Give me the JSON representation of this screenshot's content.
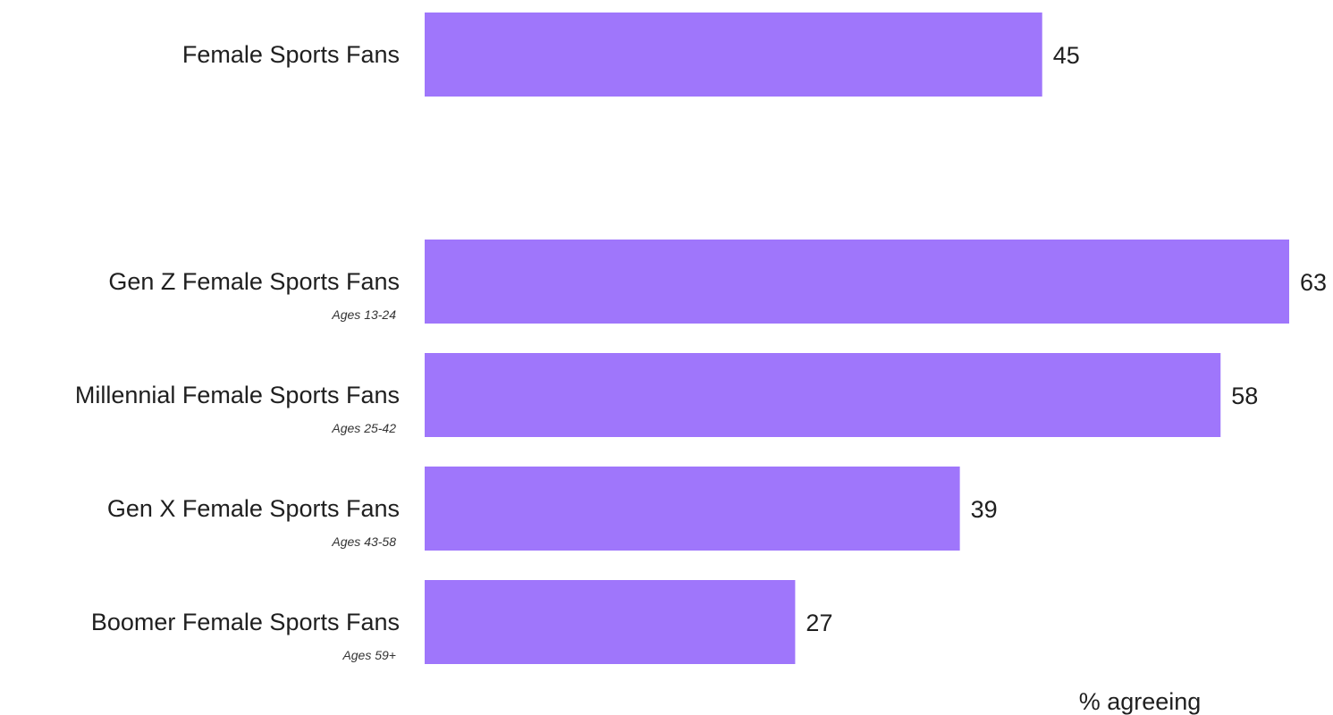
{
  "chart_data": {
    "type": "bar",
    "orientation": "horizontal",
    "categories": [
      "Female Sports Fans",
      "Gen Z Female Sports Fans",
      "Millennial Female Sports Fans",
      "Gen X Female Sports Fans",
      "Boomer Female Sports Fans"
    ],
    "sublabels": [
      "",
      "Ages 13-24",
      "Ages 25-42",
      "Ages 43-58",
      "Ages 59+"
    ],
    "values": [
      45,
      63,
      58,
      39,
      27
    ],
    "value_labels": [
      "45",
      "63",
      "58",
      "39",
      "27"
    ],
    "xlim": [
      0,
      63
    ],
    "axis_note": "% agreeing",
    "bar_color": "#9f76fb",
    "grid": false,
    "legend": "none"
  }
}
